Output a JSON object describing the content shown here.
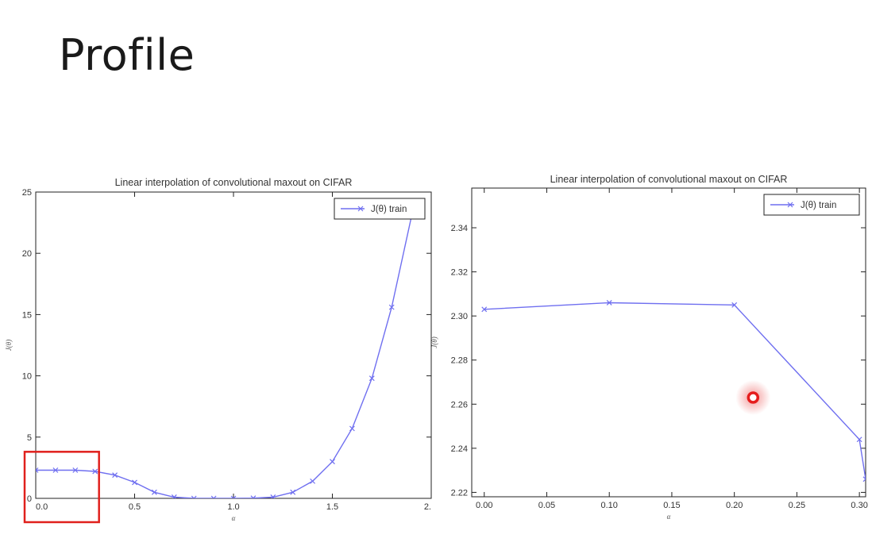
{
  "slide": {
    "title": "Profile"
  },
  "colors": {
    "series": "#6f6ff0",
    "highlight_box": "#e0201c",
    "pointer": "#e51d1d"
  },
  "chart_data": [
    {
      "type": "line",
      "title": "Linear interpolation of convolutional maxout on CIFAR",
      "xlabel": "α",
      "ylabel": "J(θ)",
      "xlim": [
        0.0,
        2.0
      ],
      "ylim": [
        0,
        25
      ],
      "xticks": [
        0.0,
        0.5,
        1.0,
        1.5,
        2.0
      ],
      "xtick_labels": [
        "0.0",
        "0.5",
        "1.0",
        "1.5",
        "2."
      ],
      "yticks": [
        0,
        5,
        10,
        15,
        20,
        25
      ],
      "ytick_labels": [
        "0",
        "5",
        "10",
        "15",
        "20",
        "25"
      ],
      "legend_position": "top-right",
      "grid": false,
      "series": [
        {
          "name": "J(θ) train",
          "x": [
            0.0,
            0.1,
            0.2,
            0.3,
            0.4,
            0.5,
            0.6,
            0.7,
            0.8,
            0.9,
            1.0,
            1.1,
            1.2,
            1.3,
            1.4,
            1.5,
            1.6,
            1.7,
            1.8,
            1.9
          ],
          "y": [
            2.3,
            2.3,
            2.3,
            2.2,
            1.9,
            1.3,
            0.5,
            0.1,
            0.0,
            0.0,
            0.0,
            0.02,
            0.1,
            0.5,
            1.4,
            3.0,
            5.7,
            9.8,
            15.6,
            23.0
          ]
        }
      ],
      "annotation": {
        "type": "highlight-rectangle",
        "x_range": [
          0.0,
          0.32
        ],
        "y_range": [
          0,
          3.8
        ]
      }
    },
    {
      "type": "line",
      "title": "Linear interpolation of convolutional maxout on CIFAR",
      "xlabel": "α",
      "ylabel": "J(θ)",
      "xlim": [
        -0.01,
        0.305
      ],
      "ylim": [
        2.218,
        2.358
      ],
      "xticks": [
        0.0,
        0.05,
        0.1,
        0.15,
        0.2,
        0.25,
        0.3
      ],
      "xtick_labels": [
        "0.00",
        "0.05",
        "0.10",
        "0.15",
        "0.20",
        "0.25",
        "0.30"
      ],
      "yticks": [
        2.22,
        2.24,
        2.26,
        2.28,
        2.3,
        2.32,
        2.34
      ],
      "ytick_labels": [
        "2.22",
        "2.24",
        "2.26",
        "2.28",
        "2.30",
        "2.32",
        "2.34"
      ],
      "legend_position": "top-right",
      "grid": false,
      "series": [
        {
          "name": "J(θ) train",
          "x": [
            0.0,
            0.1,
            0.2,
            0.3,
            0.305
          ],
          "y": [
            2.303,
            2.306,
            2.305,
            2.244,
            2.226
          ]
        }
      ],
      "annotation": {
        "type": "pointer-dot",
        "x": 0.215,
        "y": 2.263
      }
    }
  ]
}
